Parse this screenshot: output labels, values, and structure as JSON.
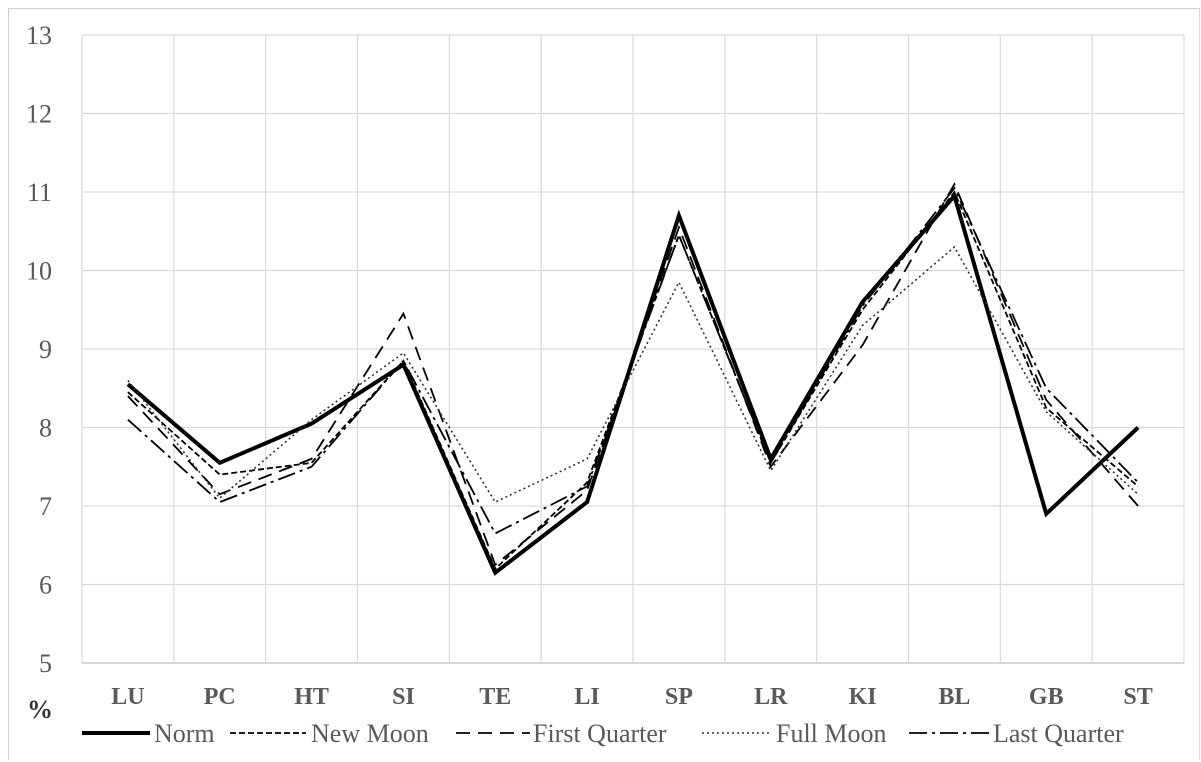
{
  "chart_data": {
    "type": "line",
    "categories": [
      "LU",
      "PC",
      "HT",
      "SI",
      "TE",
      "LI",
      "SP",
      "LR",
      "KI",
      "BL",
      "GB",
      "ST"
    ],
    "ylim": [
      5,
      13
    ],
    "yticks": [
      "5",
      "6",
      "7",
      "8",
      "9",
      "10",
      "11",
      "12",
      "13"
    ],
    "ylabel": "%",
    "xlabel": "",
    "grid": true,
    "legend_position": "bottom",
    "series": [
      {
        "name": "Norm",
        "values": [
          8.55,
          7.55,
          8.05,
          8.8,
          6.15,
          7.05,
          10.7,
          7.6,
          9.6,
          10.95,
          6.9,
          8.0
        ],
        "style": "solid",
        "width": 4,
        "color": "#000000"
      },
      {
        "name": "New Moon",
        "values": [
          8.45,
          7.4,
          7.55,
          8.85,
          6.2,
          7.3,
          10.45,
          7.55,
          9.5,
          11.0,
          8.25,
          7.25
        ],
        "style": "dense-dash",
        "width": 1.8,
        "color": "#000000"
      },
      {
        "name": "First Quarter",
        "values": [
          8.4,
          7.15,
          7.6,
          9.45,
          6.25,
          7.2,
          10.55,
          7.5,
          9.05,
          11.1,
          8.35,
          7.0
        ],
        "style": "dash",
        "width": 1.8,
        "color": "#000000"
      },
      {
        "name": "Full Moon",
        "values": [
          8.6,
          7.1,
          8.1,
          8.95,
          7.05,
          7.6,
          9.85,
          7.45,
          9.3,
          10.3,
          8.2,
          7.15
        ],
        "style": "dot",
        "width": 1.6,
        "color": "#333333"
      },
      {
        "name": "Last Quarter",
        "values": [
          8.1,
          7.05,
          7.5,
          8.85,
          6.65,
          7.25,
          10.45,
          7.55,
          9.55,
          11.05,
          8.5,
          7.3
        ],
        "style": "dash-dot",
        "width": 1.8,
        "color": "#000000"
      }
    ]
  }
}
